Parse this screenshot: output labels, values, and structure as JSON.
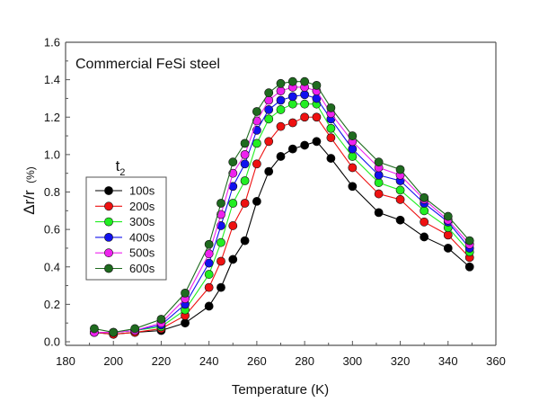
{
  "chart_data": {
    "type": "line",
    "title": "Commercial FeSi steel",
    "xlabel": "Temperature (K)",
    "ylabel_main": "Δr/r",
    "ylabel_unit": "(%)",
    "xlim": [
      180,
      360
    ],
    "ylim": [
      0.0,
      1.6
    ],
    "xticks": [
      180,
      200,
      220,
      240,
      260,
      280,
      300,
      320,
      340,
      360
    ],
    "xtick_labels": [
      "180",
      "200",
      "220",
      "240",
      "260",
      "280",
      "300",
      "320",
      "340",
      "360"
    ],
    "yticks": [
      0.0,
      0.2,
      0.4,
      0.6,
      0.8,
      1.0,
      1.2,
      1.4,
      1.6
    ],
    "ytick_labels": [
      "0.0",
      "0.2",
      "0.4",
      "0.6",
      "0.8",
      "1.0",
      "1.2",
      "1.4",
      "1.6"
    ],
    "grid": false,
    "legend": {
      "title": "t",
      "title_subscript": "2",
      "position": "left-middle"
    },
    "x": [
      192,
      200,
      209,
      220,
      230,
      240,
      245,
      250,
      255,
      260,
      265,
      270,
      275,
      280,
      285,
      291,
      300,
      311,
      320,
      330,
      340,
      349
    ],
    "series": [
      {
        "name": "100s",
        "color": "#000000",
        "values": [
          0.05,
          0.04,
          0.05,
          0.06,
          0.1,
          0.19,
          0.29,
          0.44,
          0.54,
          0.75,
          0.91,
          0.99,
          1.03,
          1.05,
          1.07,
          0.98,
          0.83,
          0.69,
          0.65,
          0.56,
          0.5,
          0.4
        ]
      },
      {
        "name": "200s",
        "color": "#ee1111",
        "values": [
          0.05,
          0.04,
          0.05,
          0.07,
          0.14,
          0.29,
          0.43,
          0.62,
          0.74,
          0.95,
          1.07,
          1.15,
          1.17,
          1.2,
          1.2,
          1.09,
          0.93,
          0.79,
          0.76,
          0.64,
          0.57,
          0.45
        ]
      },
      {
        "name": "300s",
        "color": "#22ee22",
        "values": [
          0.05,
          0.05,
          0.06,
          0.08,
          0.17,
          0.36,
          0.53,
          0.74,
          0.86,
          1.06,
          1.19,
          1.24,
          1.27,
          1.27,
          1.27,
          1.14,
          0.99,
          0.85,
          0.81,
          0.7,
          0.61,
          0.48
        ]
      },
      {
        "name": "400s",
        "color": "#1111ee",
        "values": [
          0.05,
          0.05,
          0.06,
          0.09,
          0.2,
          0.42,
          0.62,
          0.83,
          0.95,
          1.13,
          1.24,
          1.29,
          1.31,
          1.32,
          1.3,
          1.19,
          1.03,
          0.89,
          0.86,
          0.74,
          0.64,
          0.5
        ]
      },
      {
        "name": "500s",
        "color": "#ee22ee",
        "values": [
          0.05,
          0.05,
          0.06,
          0.1,
          0.23,
          0.47,
          0.68,
          0.9,
          1.0,
          1.18,
          1.29,
          1.34,
          1.36,
          1.36,
          1.34,
          1.22,
          1.07,
          0.93,
          0.89,
          0.76,
          0.65,
          0.52
        ]
      },
      {
        "name": "600s",
        "color": "#1f6b1f",
        "values": [
          0.07,
          0.05,
          0.07,
          0.12,
          0.26,
          0.52,
          0.74,
          0.96,
          1.06,
          1.23,
          1.33,
          1.38,
          1.39,
          1.39,
          1.37,
          1.25,
          1.1,
          0.96,
          0.92,
          0.77,
          0.67,
          0.54
        ]
      }
    ]
  }
}
